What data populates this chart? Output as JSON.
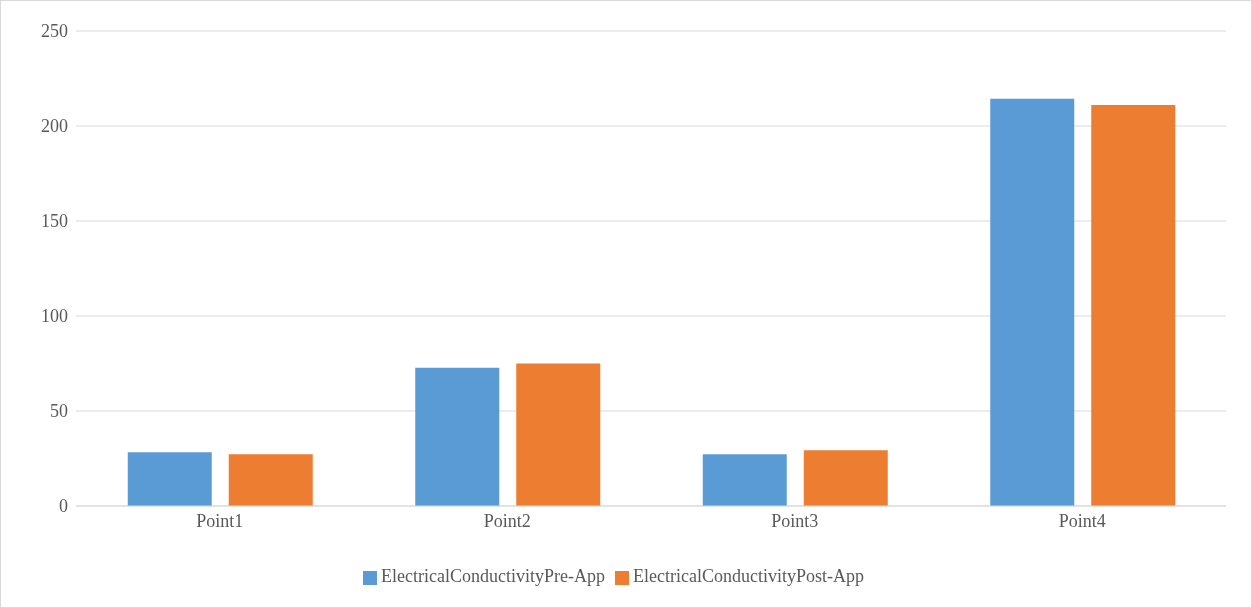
{
  "chart_data": {
    "type": "bar",
    "categories": [
      "Point1",
      "Point2",
      "Point3",
      "Point4"
    ],
    "series": [
      {
        "name": "ElectricalConductivityPre-App",
        "color": "#5b9bd5",
        "values": [
          28.3,
          72.8,
          27.2,
          214.4
        ]
      },
      {
        "name": "ElectricalConductivityPost-App",
        "color": "#ed7d31",
        "values": [
          27.2,
          75,
          29.4,
          211.1
        ]
      }
    ],
    "ylim": [
      0,
      250
    ],
    "yticks": [
      0,
      50,
      100,
      150,
      200,
      250
    ],
    "grid": "y",
    "legend": "bottom"
  }
}
